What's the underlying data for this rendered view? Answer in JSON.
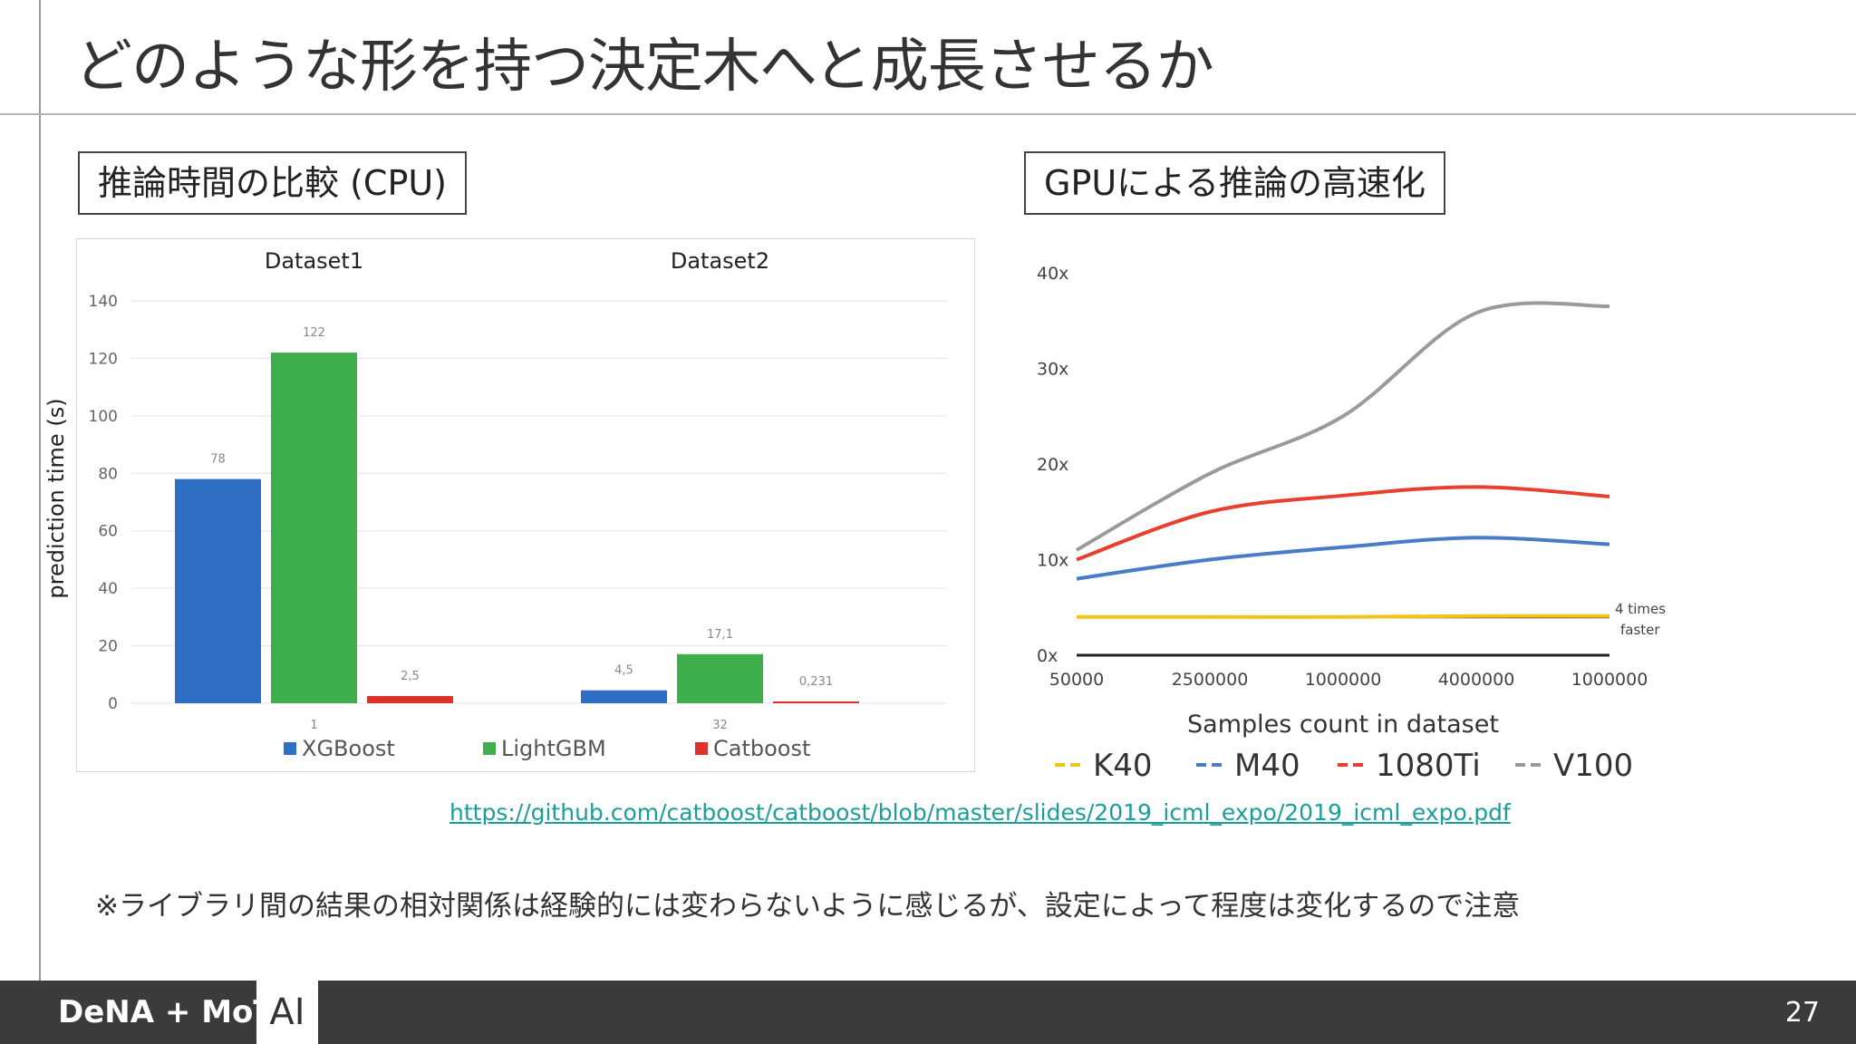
{
  "slide": {
    "title": "どのような形を持つ決定木へと成長させるか",
    "left_box_label": "推論時間の比較 (CPU)",
    "right_box_label": "GPUによる推論の高速化",
    "link_text": "https://github.com/catboost/catboost/blob/master/slides/2019_icml_expo/2019_icml_expo.pdf",
    "note": "※ライブラリ間の結果の相対関係は経験的には変わらないように感じるが、設定によって程度は変化するので注意",
    "brand": "DeNA + MoT",
    "brand_ai": "AI",
    "page_number": "27"
  },
  "chart_data": [
    {
      "type": "bar",
      "groups": [
        "Dataset1",
        "Dataset2"
      ],
      "group_sublabels": [
        "1",
        "32"
      ],
      "series": [
        {
          "name": "XGBoost",
          "color": "#2e6ec4",
          "values": [
            78,
            4.5
          ],
          "labels": [
            "78",
            "4,5"
          ]
        },
        {
          "name": "LightGBM",
          "color": "#3fae4c",
          "values": [
            122,
            17.1
          ],
          "labels": [
            "122",
            "17,1"
          ]
        },
        {
          "name": "Catboost",
          "color": "#e0302a",
          "values": [
            2.5,
            0.231
          ],
          "labels": [
            "2,5",
            "0,231"
          ]
        }
      ],
      "ylabel": "prediction time (s)",
      "ylim": [
        0,
        140
      ],
      "yticks": [
        0,
        20,
        40,
        60,
        80,
        100,
        120,
        140
      ],
      "grid": true,
      "legend": "bottom"
    },
    {
      "type": "line",
      "x_tick_labels": [
        "50000",
        "2500000",
        "1000000",
        "4000000",
        "1000000"
      ],
      "x": [
        0,
        1,
        2,
        3,
        4
      ],
      "xlabel": "Samples count in dataset",
      "ytick_labels": [
        "0x",
        "10x",
        "20x",
        "30x",
        "40x"
      ],
      "ylim": [
        0,
        40
      ],
      "series": [
        {
          "name": "K40",
          "color": "#f0c419",
          "values": [
            4,
            4,
            4,
            4.1,
            4.1
          ]
        },
        {
          "name": "M40",
          "color": "#4a7bc8",
          "values": [
            8,
            10,
            11.3,
            12.3,
            11.6
          ]
        },
        {
          "name": "1080Ti",
          "color": "#e8402f",
          "values": [
            10,
            15,
            16.7,
            17.6,
            16.6
          ]
        },
        {
          "name": "V100",
          "color": "#9a9a9a",
          "values": [
            11,
            19,
            25,
            35.8,
            36.5
          ]
        }
      ],
      "baseline_values": [
        4,
        4,
        4,
        4,
        4
      ],
      "annotation": "4 times faster",
      "grid": false,
      "legend": "bottom"
    }
  ]
}
